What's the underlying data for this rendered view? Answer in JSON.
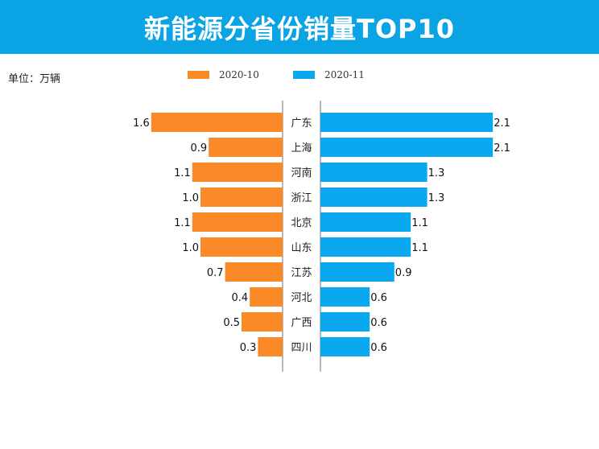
{
  "title": "新能源分省份销量TOP10",
  "unit_label": "单位：万辆",
  "colors": {
    "header": "#0aa4e5",
    "series_oct": "#fa8a28",
    "series_nov": "#0aa8ee"
  },
  "chart_data": {
    "type": "bar",
    "orientation": "horizontal-butterfly",
    "title": "新能源分省份销量TOP10",
    "categories": [
      "广东",
      "上海",
      "河南",
      "浙江",
      "北京",
      "山东",
      "江苏",
      "河北",
      "广西",
      "四川"
    ],
    "series": [
      {
        "name": "2020-10",
        "side": "left",
        "values": [
          1.6,
          0.9,
          1.1,
          1.0,
          1.1,
          1.0,
          0.7,
          0.4,
          0.5,
          0.3
        ]
      },
      {
        "name": "2020-11",
        "side": "right",
        "values": [
          2.1,
          2.1,
          1.3,
          1.3,
          1.1,
          1.1,
          0.9,
          0.6,
          0.6,
          0.6
        ]
      }
    ],
    "value_labels": {
      "2020-10": [
        "1.6",
        "0.9",
        "1.1",
        "1.0",
        "1.1",
        "1.0",
        "0.7",
        "0.4",
        "0.5",
        "0.3"
      ],
      "2020-11": [
        "2.1",
        "2.1",
        "1.3",
        "1.3",
        "1.1",
        "1.1",
        "0.9",
        "0.6",
        "0.6",
        "0.6"
      ]
    },
    "legend_position": "top-center",
    "grid": false
  }
}
